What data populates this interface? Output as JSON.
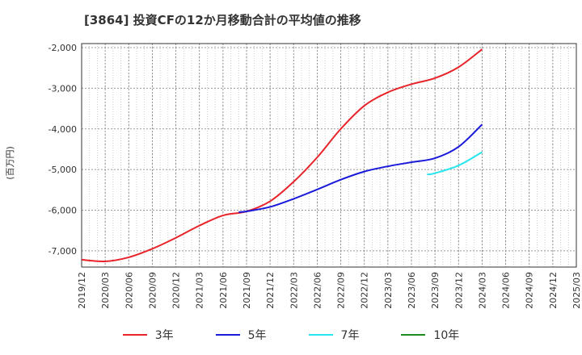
{
  "chart_data": {
    "type": "line",
    "title": "[3864]  投資CFの12か月移動合計の平均値の推移",
    "ylabel": "(百万円)",
    "xlabel": "",
    "ylim": [
      -7400,
      -1900
    ],
    "yticks": [
      -2000,
      -3000,
      -4000,
      -5000,
      -6000,
      -7000
    ],
    "ytick_labels": [
      "-2,000",
      "-3,000",
      "-4,000",
      "-5,000",
      "-6,000",
      "-7,000"
    ],
    "xticks": [
      "2019/12",
      "2020/03",
      "2020/06",
      "2020/09",
      "2020/12",
      "2021/03",
      "2021/06",
      "2021/09",
      "2021/12",
      "2022/03",
      "2022/06",
      "2022/09",
      "2022/12",
      "2023/03",
      "2023/06",
      "2023/09",
      "2023/12",
      "2024/03",
      "2024/06",
      "2024/09",
      "2024/12",
      "2025/03"
    ],
    "grid": true,
    "legend_position": "bottom",
    "series": [
      {
        "name": "3年",
        "color": "#e8242a",
        "x": [
          "2019/12",
          "2020/03",
          "2020/06",
          "2020/09",
          "2020/12",
          "2021/03",
          "2021/06",
          "2021/09",
          "2021/12",
          "2022/03",
          "2022/06",
          "2022/09",
          "2022/12",
          "2023/03",
          "2023/06",
          "2023/09",
          "2023/12",
          "2024/03"
        ],
        "values": [
          -7220,
          -7260,
          -7160,
          -6950,
          -6680,
          -6380,
          -6130,
          -6030,
          -5780,
          -5300,
          -4700,
          -4000,
          -3430,
          -3100,
          -2900,
          -2750,
          -2480,
          -2040
        ]
      },
      {
        "name": "5年",
        "color": "#1a1adb",
        "x": [
          "2021/08",
          "2021/09",
          "2021/12",
          "2022/03",
          "2022/06",
          "2022/09",
          "2022/12",
          "2023/03",
          "2023/06",
          "2023/09",
          "2023/12",
          "2024/03"
        ],
        "values": [
          -6050,
          -6030,
          -5920,
          -5720,
          -5490,
          -5250,
          -5050,
          -4920,
          -4820,
          -4720,
          -4440,
          -3890
        ]
      },
      {
        "name": "7年",
        "color": "#28e6ef",
        "x": [
          "2023/08",
          "2023/09",
          "2023/12",
          "2024/03"
        ],
        "values": [
          -5120,
          -5090,
          -4900,
          -4570
        ]
      },
      {
        "name": "10年",
        "color": "#1d8a1d",
        "x": [],
        "values": []
      }
    ]
  }
}
